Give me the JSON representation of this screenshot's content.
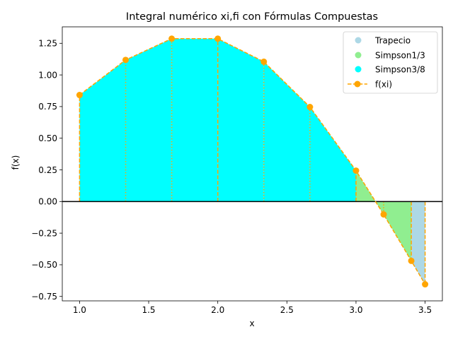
{
  "chart_data": {
    "type": "area",
    "title": "Integral numérico xi,fi con Fórmulas Compuestas",
    "xlabel": "x",
    "ylabel": "f(x)",
    "xlim": [
      0.875,
      3.625
    ],
    "ylim": [
      -0.785,
      1.38
    ],
    "x_ticks": [
      1.0,
      1.5,
      2.0,
      2.5,
      3.0,
      3.5
    ],
    "x_tick_labels": [
      "1.0",
      "1.5",
      "2.0",
      "2.5",
      "3.0",
      "3.5"
    ],
    "y_ticks": [
      -0.75,
      -0.5,
      -0.25,
      0.0,
      0.25,
      0.5,
      0.75,
      1.0,
      1.25
    ],
    "y_tick_labels": [
      "−0.75",
      "−0.50",
      "−0.25",
      "0.00",
      "0.25",
      "0.50",
      "0.75",
      "1.00",
      "1.25"
    ],
    "grid": false,
    "legend_position": "top-right",
    "points": {
      "x": [
        1.0,
        1.3333,
        1.6667,
        2.0,
        2.3333,
        2.6667,
        3.0,
        3.2,
        3.4,
        3.5
      ],
      "y": [
        0.8415,
        1.1185,
        1.2865,
        1.2862,
        1.1042,
        0.7466,
        0.244,
        -0.102,
        -0.4689,
        -0.654
      ]
    },
    "series": [
      {
        "name": "Trapecio",
        "color": "#add8e6",
        "x_range": [
          3.4,
          3.5
        ]
      },
      {
        "name": "Simpson1/3",
        "color": "#90ee90",
        "x_range": [
          3.0,
          3.4
        ]
      },
      {
        "name": "Simpson3/8",
        "color": "#00ffff",
        "x_range": [
          1.0,
          3.0
        ]
      },
      {
        "name": "f(xi)",
        "color": "#ffa500"
      }
    ]
  }
}
